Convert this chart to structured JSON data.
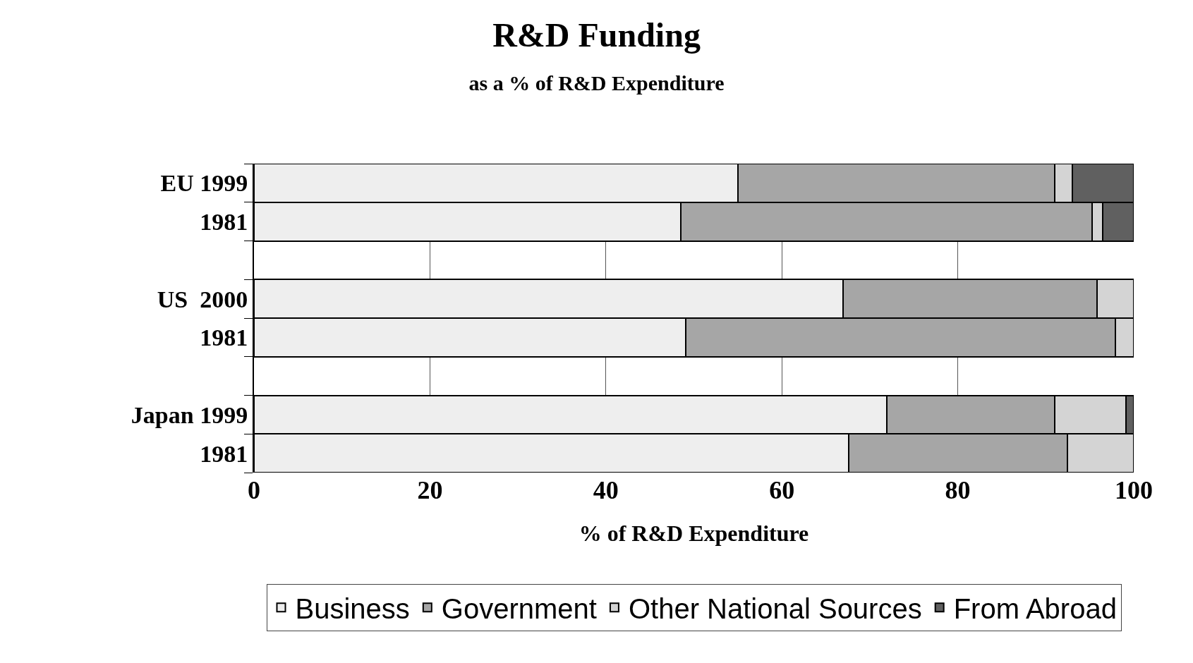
{
  "chart_data": {
    "type": "bar",
    "orientation": "horizontal",
    "stacked": true,
    "title": "R&D Funding",
    "subtitle": "as a % of R&D Expenditure",
    "xlabel": "% of R&D Expenditure",
    "categories": [
      "EU 1999",
      "1981",
      null,
      "US  2000",
      "1981",
      null,
      "Japan 1999",
      "1981"
    ],
    "series": [
      {
        "name": "Business",
        "color": "#eeeeee",
        "values": [
          55,
          48.5,
          null,
          67,
          49.1,
          null,
          71.9,
          67.6
        ]
      },
      {
        "name": "Government",
        "color": "#a6a6a6",
        "values": [
          36,
          46.8,
          null,
          28.8,
          48.8,
          null,
          19.1,
          24.9
        ]
      },
      {
        "name": "Other National Sources",
        "color": "#d4d4d4",
        "values": [
          2,
          1.2,
          null,
          4.2,
          2.1,
          null,
          8.1,
          7.5
        ]
      },
      {
        "name": "From Abroad",
        "color": "#606060",
        "values": [
          7,
          3.5,
          null,
          null,
          null,
          null,
          0.9,
          null
        ]
      }
    ],
    "xlim": [
      0,
      100
    ],
    "xticks": [
      0,
      20,
      40,
      60,
      80,
      100
    ],
    "grid": "x",
    "legend": "bottom"
  }
}
